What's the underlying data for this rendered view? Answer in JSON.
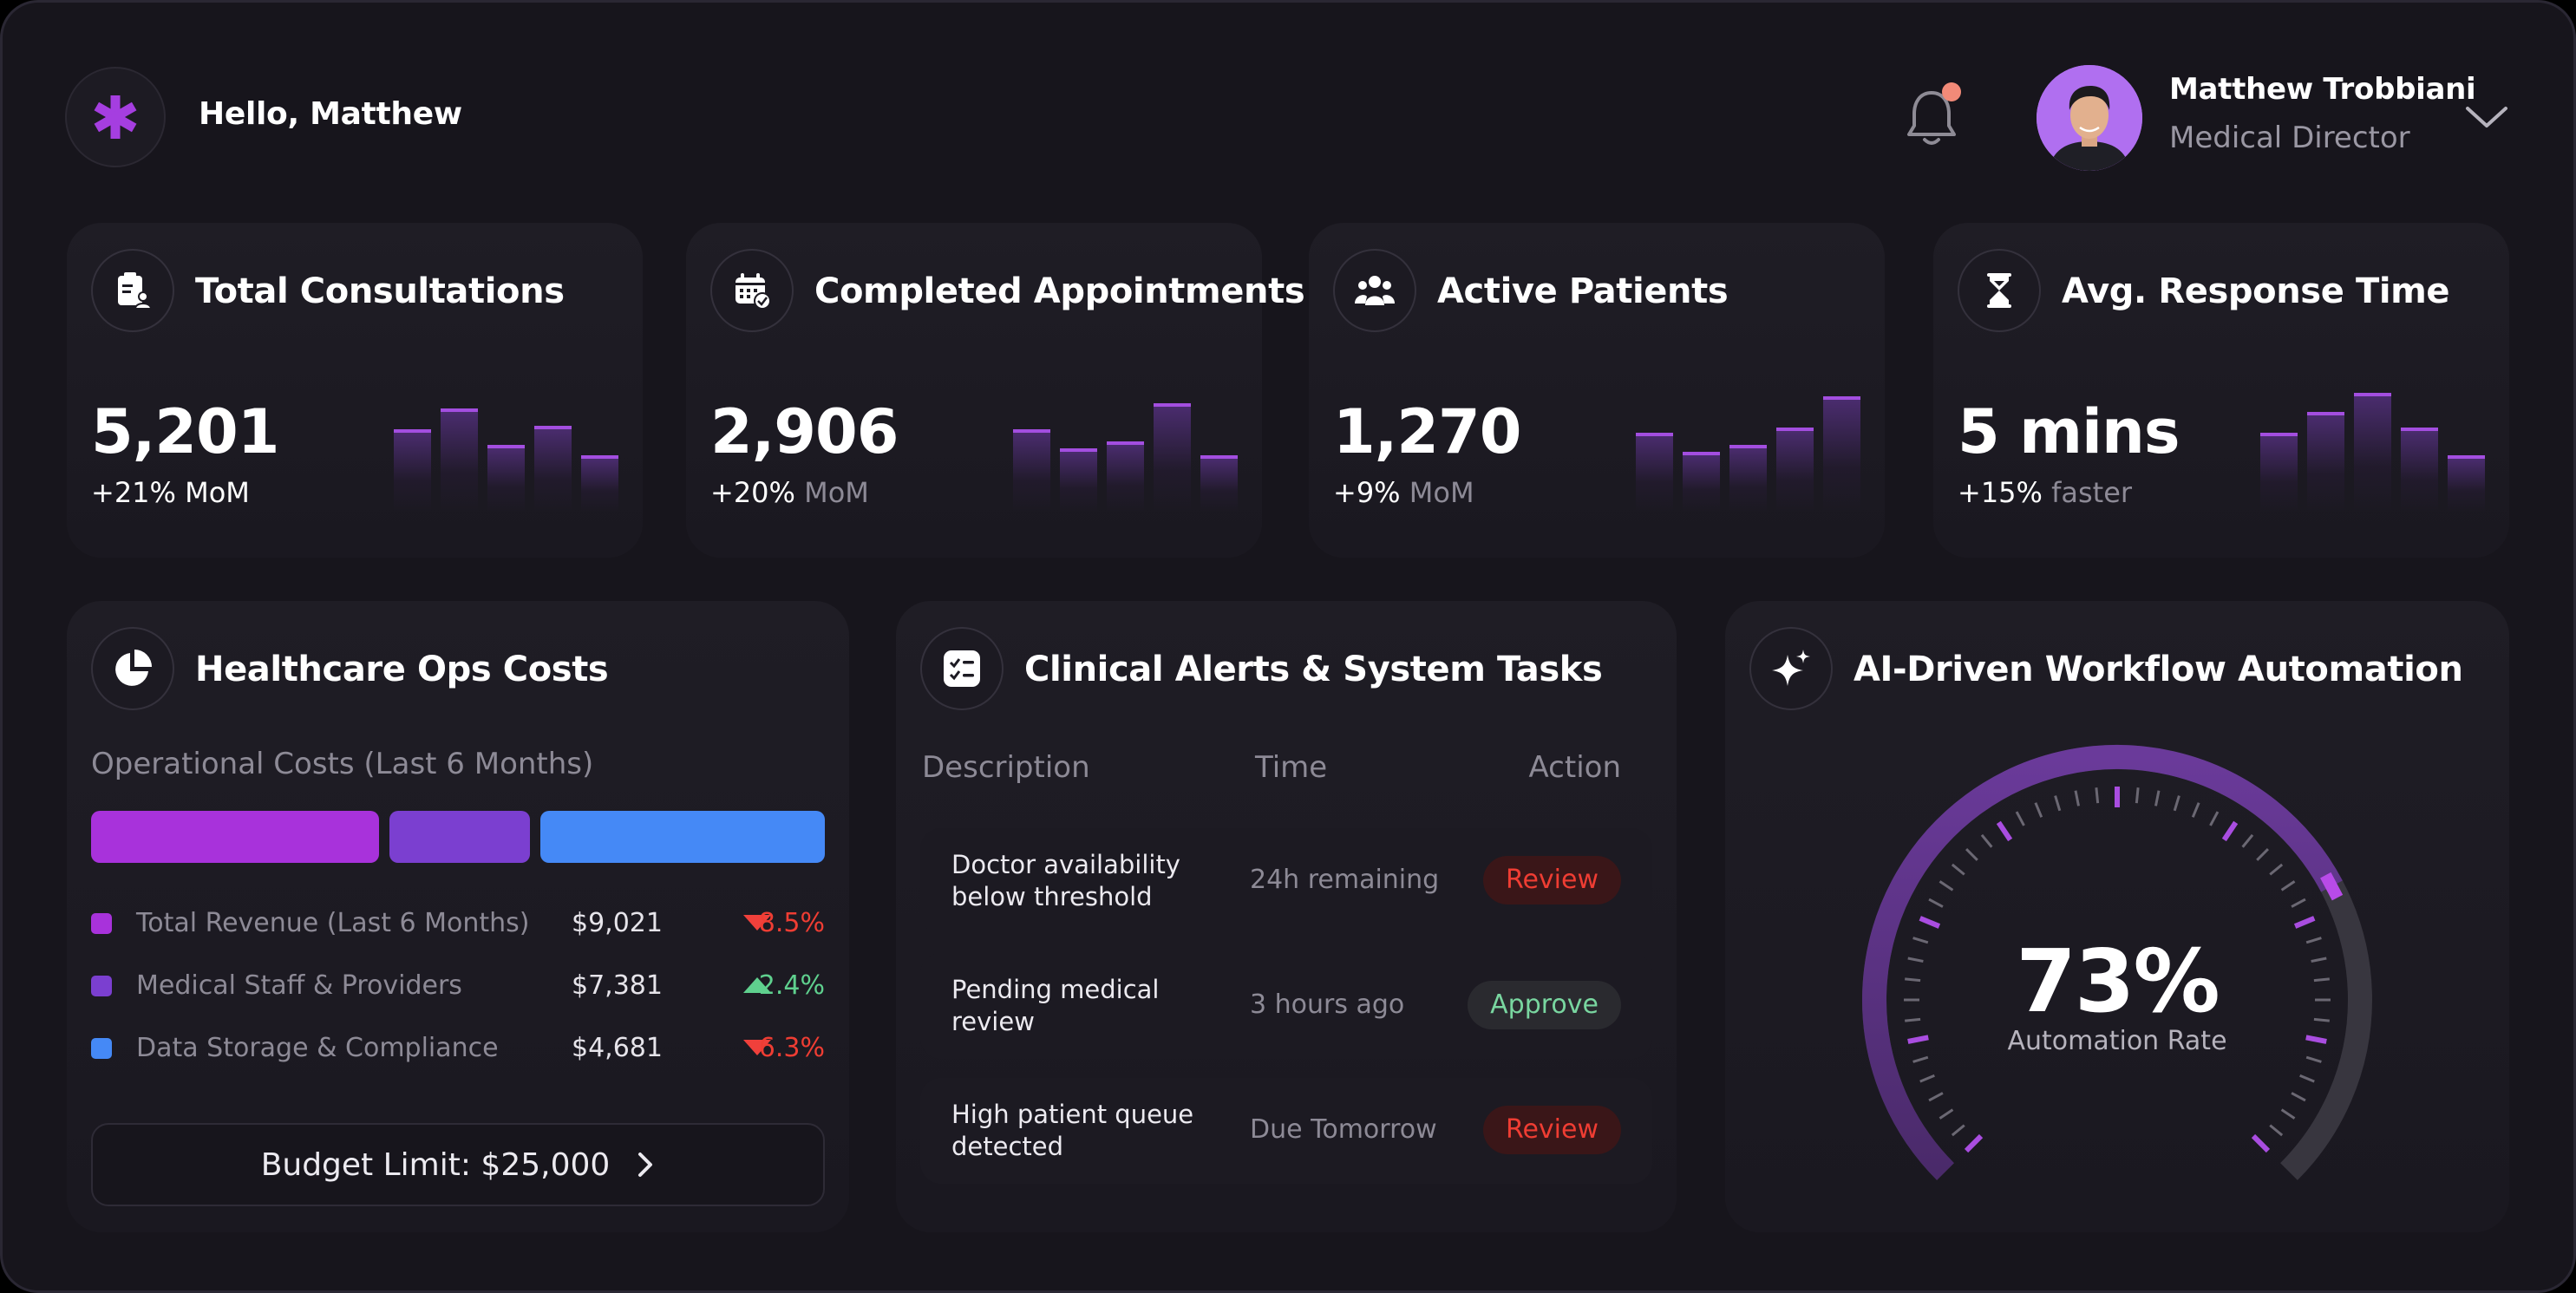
{
  "header": {
    "greeting": "Hello, Matthew",
    "user_name": "Matthew Trobbiani",
    "user_role": "Medical Director",
    "has_notification": true
  },
  "kpis": [
    {
      "title": "Total Consultations",
      "value": "5,201",
      "delta": "+21%",
      "delta_suffix": "MoM",
      "icon": "clipboard-user-icon"
    },
    {
      "title": "Completed Appointments",
      "value": "2,906",
      "delta": "+20%",
      "delta_suffix": "MoM",
      "icon": "calendar-check-icon"
    },
    {
      "title": "Active Patients",
      "value": "1,270",
      "delta": "+9%",
      "delta_suffix": "MoM",
      "icon": "users-icon"
    },
    {
      "title": "Avg. Response Time",
      "value": "5 mins",
      "delta": "+15%",
      "delta_suffix": "faster",
      "icon": "hourglass-icon"
    }
  ],
  "costs": {
    "title": "Healthcare Ops Costs",
    "subtitle": "Operational Costs (Last 6 Months)",
    "items": [
      {
        "label": "Total Revenue (Last 6 Months)",
        "amount": "$9,021",
        "change": "8.5%",
        "direction": "down",
        "color": "#a832db"
      },
      {
        "label": "Medical Staff & Providers",
        "amount": "$7,381",
        "change": "2.4%",
        "direction": "up",
        "color": "#7b3fd0"
      },
      {
        "label": "Data Storage & Compliance",
        "amount": "$4,681",
        "change": "6.3%",
        "direction": "down",
        "color": "#4589f6"
      }
    ],
    "budget_label": "Budget Limit: $25,000"
  },
  "alerts": {
    "title": "Clinical Alerts & System Tasks",
    "columns": [
      "Description",
      "Time",
      "Action"
    ],
    "rows": [
      {
        "description": "Doctor availability below threshold",
        "time": "24h remaining",
        "action": "Review",
        "action_type": "review"
      },
      {
        "description": "Pending medical review",
        "time": "3 hours ago",
        "action": "Approve",
        "action_type": "approve"
      },
      {
        "description": "High patient queue detected",
        "time": "Due Tomorrow",
        "action": "Review",
        "action_type": "review"
      }
    ]
  },
  "automation": {
    "title": "AI-Driven Workflow Automation",
    "value": "73%",
    "fraction": 0.73,
    "label": "Automation Rate"
  },
  "colors": {
    "accent": "#a832db",
    "alert_red": "#ef3d33",
    "success_green": "#5fd08e"
  }
}
